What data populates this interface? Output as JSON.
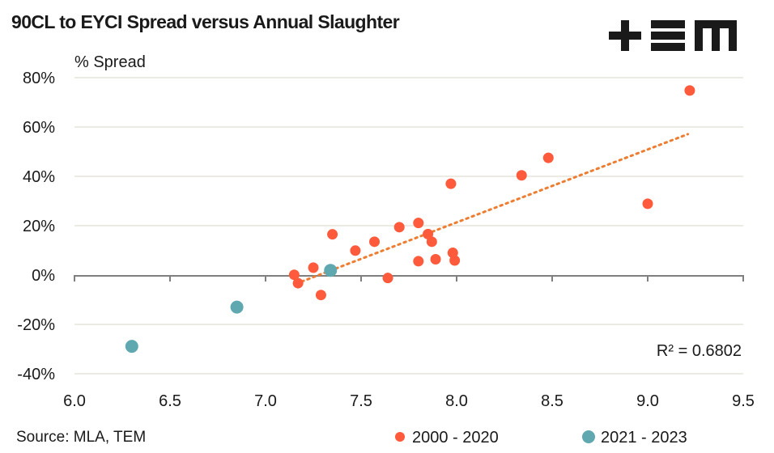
{
  "logo": {
    "text": "TEM",
    "icon": "tem-logo-icon"
  },
  "chart_data": {
    "type": "scatter",
    "title": "90CL to EYCI Spread versus Annual Slaughter",
    "xlabel": "",
    "ylabel": "% Spread",
    "xlim": [
      6.0,
      9.5
    ],
    "ylim": [
      -40,
      80
    ],
    "x_ticks": [
      "6.0",
      "6.5",
      "7.0",
      "7.5",
      "8.0",
      "8.5",
      "9.0",
      "9.5"
    ],
    "x_tick_values": [
      6.0,
      6.5,
      7.0,
      7.5,
      8.0,
      8.5,
      9.0,
      9.5
    ],
    "y_ticks": [
      "80%",
      "60%",
      "40%",
      "20%",
      "0%",
      "-20%",
      "-40%"
    ],
    "y_tick_values": [
      80,
      60,
      40,
      20,
      0,
      -20,
      -40
    ],
    "grid": "horizontal",
    "legend_position": "bottom-right",
    "series": [
      {
        "name": "2000 - 2020",
        "color": "#ff5a3c",
        "points": [
          {
            "x": 7.15,
            "y": 0.1
          },
          {
            "x": 7.17,
            "y": -3.3
          },
          {
            "x": 7.25,
            "y": 3.0
          },
          {
            "x": 7.29,
            "y": -8.1
          },
          {
            "x": 7.35,
            "y": 16.5
          },
          {
            "x": 7.47,
            "y": 9.9
          },
          {
            "x": 7.57,
            "y": 13.5
          },
          {
            "x": 7.64,
            "y": -1.2
          },
          {
            "x": 7.7,
            "y": 19.4
          },
          {
            "x": 7.8,
            "y": 21.1
          },
          {
            "x": 7.8,
            "y": 5.6
          },
          {
            "x": 7.85,
            "y": 16.6
          },
          {
            "x": 7.87,
            "y": 13.5
          },
          {
            "x": 7.89,
            "y": 6.4
          },
          {
            "x": 7.97,
            "y": 37.0
          },
          {
            "x": 7.98,
            "y": 9.0
          },
          {
            "x": 7.99,
            "y": 5.9
          },
          {
            "x": 8.34,
            "y": 40.4
          },
          {
            "x": 8.48,
            "y": 47.5
          },
          {
            "x": 9.0,
            "y": 28.9
          },
          {
            "x": 9.22,
            "y": 74.8
          }
        ]
      },
      {
        "name": "2021 - 2023",
        "color": "#5fa8b0",
        "points": [
          {
            "x": 6.3,
            "y": -28.9
          },
          {
            "x": 6.85,
            "y": -13.0
          },
          {
            "x": 7.34,
            "y": 1.9
          }
        ]
      }
    ],
    "trendline": {
      "series": "2000 - 2020",
      "type": "linear",
      "color": "#ed7d31",
      "style": "dotted",
      "x_start": 7.16,
      "y_start": -3.5,
      "x_end": 9.21,
      "y_end": 57.1,
      "r_squared_label": "R² = 0.6802"
    }
  },
  "footer": {
    "source": "Source: MLA, TEM"
  }
}
